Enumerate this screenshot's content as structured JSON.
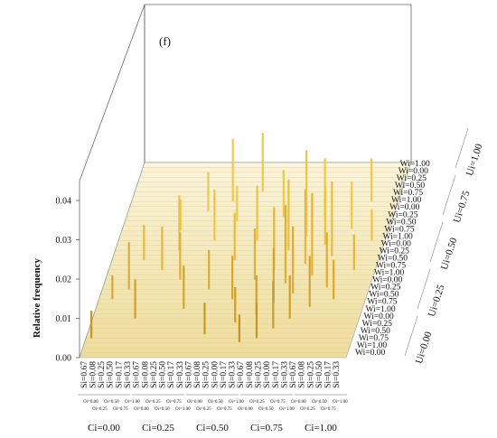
{
  "chart_data": {
    "type": "bar",
    "panel_label": "(f)",
    "ylabel": "Relative frequency",
    "ylim": [
      0,
      0.045
    ],
    "yticks": [
      "0.00",
      "0.01",
      "0.02",
      "0.03",
      "0.04"
    ],
    "x_si_ticks": [
      "Si=0.67",
      "Si=0.08",
      "Si=0.25",
      "Si=0.50",
      "Si=0.17",
      "Si=0.33",
      "Si=0.67",
      "Si=0.08",
      "Si=0.25",
      "Si=0.50",
      "Si=0.17",
      "Si=0.33",
      "Si=0.67",
      "Si=0.08",
      "Si=0.25",
      "Si=0.00",
      "Si=0.17",
      "Si=0.33",
      "Si=0.67",
      "Si=0.08",
      "Si=0.25",
      "Si=0.00",
      "Si=0.17",
      "Si=0.33",
      "Si=0.67",
      "Si=0.08",
      "Si=0.25",
      "Si=0.50",
      "Si=0.17",
      "Si=0.33"
    ],
    "oi_row1": [
      "Oi=0.00",
      "Oi=0.50",
      "Oi=1.00",
      "Oi=0.25",
      "Oi=0.75",
      "Oi=0.00",
      "Oi=0.50",
      "Oi=1.00",
      "Oi=0.25",
      "Oi=0.75",
      "Oi=0.00",
      "Oi=0.50",
      "Oi=1.00"
    ],
    "oi_row2": [
      "Oi=0.25",
      "Oi=0.75",
      "Oi=0.00",
      "Oi=0.50",
      "Oi=1.00",
      "Oi=0.25",
      "Oi=0.75",
      "Oi=0.00",
      "Oi=0.50",
      "Oi=1.00",
      "Oi=0.25",
      "Oi=0.75"
    ],
    "ci_groups": [
      "Ci=0.00",
      "Ci=0.25",
      "Ci=0.50",
      "Ci=0.75",
      "Ci=1.00"
    ],
    "wi_ticks": [
      "Wi=1.00",
      "Wi=0.00",
      "Wi=0.25",
      "Wi=0.50",
      "Wi=0.75",
      "Wi=1.00",
      "Wi=0.00",
      "Wi=0.25",
      "Wi=0.50",
      "Wi=0.75",
      "Wi=1.00",
      "Wi=0.00",
      "Wi=0.25",
      "Wi=0.50",
      "Wi=0.75",
      "Wi=1.00",
      "Wi=0.00",
      "Wi=0.25",
      "Wi=0.50",
      "Wi=0.75",
      "Wi=1.00",
      "Wi=0.00",
      "Wi=0.25",
      "Wi=0.50",
      "Wi=0.75",
      "Wi=1.00",
      "Wi=0.00"
    ],
    "ui_groups": [
      "Ui=0.00",
      "Ui=0.25",
      "Ui=0.50",
      "Ui=0.75",
      "Ui=1.00"
    ],
    "colors": {
      "bar": "#c9960c",
      "floor": "#f0e1a8",
      "wall_line": "#888888"
    },
    "bars": [
      {
        "x": 0.02,
        "d": 0.1,
        "v": 0.007
      },
      {
        "x": 0.05,
        "d": 0.3,
        "v": 0.006
      },
      {
        "x": 0.1,
        "d": 0.35,
        "v": 0.012
      },
      {
        "x": 0.12,
        "d": 0.5,
        "v": 0.009
      },
      {
        "x": 0.16,
        "d": 0.2,
        "v": 0.01
      },
      {
        "x": 0.2,
        "d": 0.45,
        "v": 0.011
      },
      {
        "x": 0.22,
        "d": 0.65,
        "v": 0.008
      },
      {
        "x": 0.24,
        "d": 0.55,
        "v": 0.014
      },
      {
        "x": 0.28,
        "d": 0.4,
        "v": 0.012
      },
      {
        "x": 0.3,
        "d": 0.75,
        "v": 0.01
      },
      {
        "x": 0.33,
        "d": 0.25,
        "v": 0.011
      },
      {
        "x": 0.36,
        "d": 0.6,
        "v": 0.013
      },
      {
        "x": 0.38,
        "d": 0.8,
        "v": 0.016
      },
      {
        "x": 0.4,
        "d": 0.35,
        "v": 0.01
      },
      {
        "x": 0.42,
        "d": 0.7,
        "v": 0.009
      },
      {
        "x": 0.44,
        "d": 0.12,
        "v": 0.008
      },
      {
        "x": 0.46,
        "d": 0.5,
        "v": 0.012
      },
      {
        "x": 0.48,
        "d": 0.85,
        "v": 0.015
      },
      {
        "x": 0.5,
        "d": 0.3,
        "v": 0.011
      },
      {
        "x": 0.52,
        "d": 0.6,
        "v": 0.014
      },
      {
        "x": 0.54,
        "d": 0.18,
        "v": 0.009
      },
      {
        "x": 0.56,
        "d": 0.4,
        "v": 0.013
      },
      {
        "x": 0.58,
        "d": 0.08,
        "v": 0.007
      },
      {
        "x": 0.59,
        "d": 0.72,
        "v": 0.012
      },
      {
        "x": 0.61,
        "d": 0.22,
        "v": 0.01
      },
      {
        "x": 0.62,
        "d": 0.45,
        "v": 0.016
      },
      {
        "x": 0.64,
        "d": 0.1,
        "v": 0.009
      },
      {
        "x": 0.65,
        "d": 0.55,
        "v": 0.018
      },
      {
        "x": 0.66,
        "d": 0.28,
        "v": 0.014
      },
      {
        "x": 0.68,
        "d": 0.38,
        "v": 0.02
      },
      {
        "x": 0.69,
        "d": 0.15,
        "v": 0.012
      },
      {
        "x": 0.7,
        "d": 0.62,
        "v": 0.022
      },
      {
        "x": 0.72,
        "d": 0.33,
        "v": 0.017
      },
      {
        "x": 0.73,
        "d": 0.48,
        "v": 0.019
      },
      {
        "x": 0.74,
        "d": 0.2,
        "v": 0.011
      },
      {
        "x": 0.75,
        "d": 0.7,
        "v": 0.016
      },
      {
        "x": 0.77,
        "d": 0.42,
        "v": 0.021
      },
      {
        "x": 0.78,
        "d": 0.58,
        "v": 0.015
      },
      {
        "x": 0.8,
        "d": 0.26,
        "v": 0.013
      },
      {
        "x": 0.82,
        "d": 0.52,
        "v": 0.019
      },
      {
        "x": 0.84,
        "d": 0.36,
        "v": 0.014
      },
      {
        "x": 0.86,
        "d": 0.66,
        "v": 0.012
      },
      {
        "x": 0.88,
        "d": 0.3,
        "v": 0.01
      },
      {
        "x": 0.9,
        "d": 0.8,
        "v": 0.011
      },
      {
        "x": 0.92,
        "d": 0.45,
        "v": 0.009
      },
      {
        "x": 0.95,
        "d": 0.6,
        "v": 0.008
      }
    ]
  }
}
